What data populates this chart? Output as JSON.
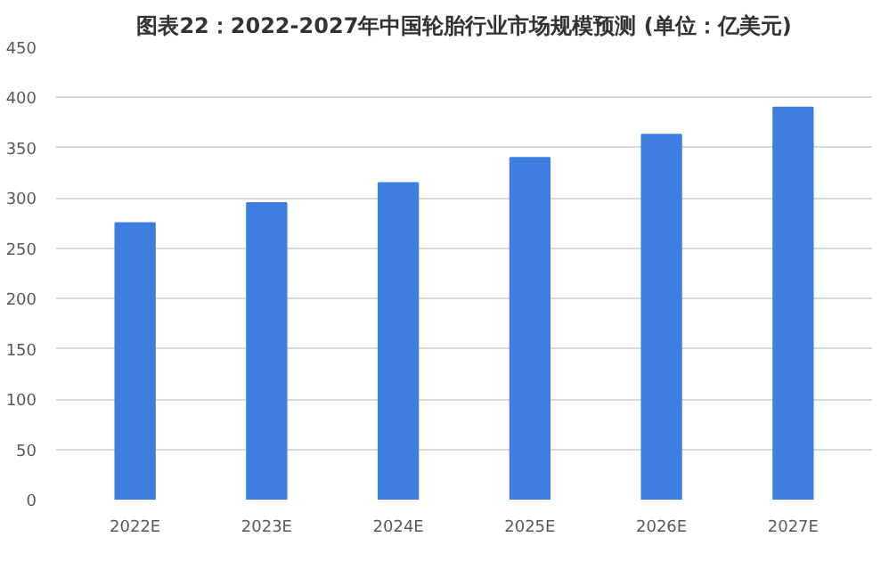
{
  "chart_data": {
    "type": "bar",
    "title": "图表22：2022-2027年中国轮胎行业市场规模预测 (单位：亿美元)",
    "categories": [
      "2022E",
      "2023E",
      "2024E",
      "2025E",
      "2026E",
      "2027E"
    ],
    "values": [
      275,
      295,
      315,
      340,
      363,
      390
    ],
    "color": "#3d7fe0",
    "ylim": [
      0,
      450
    ],
    "yticks": [
      0,
      50,
      100,
      150,
      200,
      250,
      300,
      350,
      400,
      450
    ],
    "grid": "y"
  }
}
